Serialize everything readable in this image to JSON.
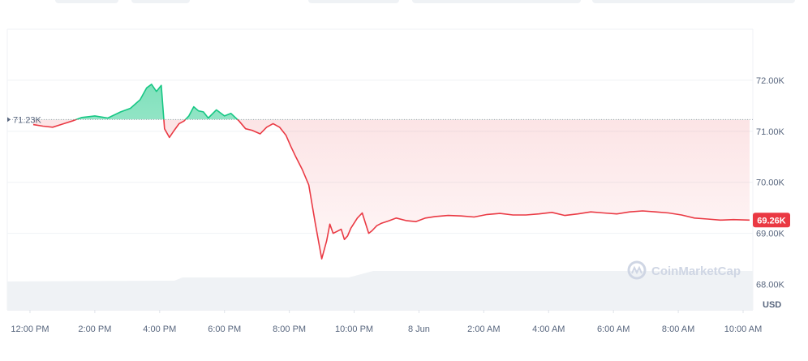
{
  "chart_data": {
    "type": "line",
    "unit_label": "USD",
    "watermark": "CoinMarketCap",
    "colors": {
      "up": "#16c784",
      "down": "#ea3943",
      "grid": "#eff2f5",
      "text": "#58667e",
      "volume": "#eff2f5"
    },
    "reference": {
      "value": 71230,
      "label": "71.23K"
    },
    "current": {
      "value": 69260,
      "label": "69.26K"
    },
    "ylim": [
      67500,
      73000
    ],
    "y_ticks": [
      {
        "value": 72000,
        "label": "72.00K"
      },
      {
        "value": 71000,
        "label": "71.00K"
      },
      {
        "value": 70000,
        "label": "70.00K"
      },
      {
        "value": 69000,
        "label": "69.00K"
      },
      {
        "value": 68000,
        "label": "68.00K"
      }
    ],
    "xlim": [
      11.3,
      34.3
    ],
    "x_ticks": [
      {
        "value": 12,
        "label": "12:00 PM"
      },
      {
        "value": 14,
        "label": "2:00 PM"
      },
      {
        "value": 16,
        "label": "4:00 PM"
      },
      {
        "value": 18,
        "label": "6:00 PM"
      },
      {
        "value": 20,
        "label": "8:00 PM"
      },
      {
        "value": 22,
        "label": "10:00 PM"
      },
      {
        "value": 24,
        "label": "8 Jun"
      },
      {
        "value": 26,
        "label": "2:00 AM"
      },
      {
        "value": 28,
        "label": "4:00 AM"
      },
      {
        "value": 30,
        "label": "6:00 AM"
      },
      {
        "value": 32,
        "label": "8:00 AM"
      },
      {
        "value": 34,
        "label": "10:00 AM"
      }
    ],
    "x": [
      12.1,
      12.4,
      12.7,
      13.0,
      13.3,
      13.6,
      14.0,
      14.4,
      14.8,
      15.1,
      15.4,
      15.6,
      15.75,
      15.9,
      16.05,
      16.15,
      16.3,
      16.45,
      16.6,
      16.75,
      16.9,
      17.05,
      17.2,
      17.35,
      17.5,
      17.75,
      18.0,
      18.2,
      18.45,
      18.65,
      18.85,
      19.1,
      19.3,
      19.5,
      19.7,
      19.9,
      20.05,
      20.2,
      20.4,
      20.6,
      20.8,
      21.0,
      21.15,
      21.25,
      21.35,
      21.45,
      21.6,
      21.7,
      21.8,
      21.9,
      22.1,
      22.25,
      22.35,
      22.45,
      22.55,
      22.7,
      22.85,
      23.05,
      23.3,
      23.6,
      23.9,
      24.2,
      24.5,
      24.9,
      25.3,
      25.7,
      26.1,
      26.5,
      26.9,
      27.3,
      27.7,
      28.1,
      28.5,
      28.9,
      29.3,
      29.7,
      30.1,
      30.5,
      30.9,
      31.3,
      31.7,
      32.1,
      32.5,
      32.9,
      33.3,
      33.7,
      34.2
    ],
    "y": [
      71130,
      71100,
      71080,
      71140,
      71200,
      71270,
      71300,
      71260,
      71380,
      71450,
      71620,
      71850,
      71920,
      71780,
      71900,
      71050,
      70880,
      71020,
      71150,
      71200,
      71300,
      71480,
      71400,
      71380,
      71260,
      71420,
      71300,
      71350,
      71200,
      71050,
      71020,
      70950,
      71080,
      71150,
      71080,
      70920,
      70700,
      70500,
      70250,
      69950,
      69200,
      68500,
      68850,
      69180,
      69000,
      69030,
      69080,
      68880,
      68950,
      69100,
      69300,
      69400,
      69200,
      69000,
      69050,
      69150,
      69200,
      69240,
      69300,
      69250,
      69230,
      69300,
      69330,
      69350,
      69340,
      69320,
      69370,
      69390,
      69360,
      69360,
      69380,
      69410,
      69350,
      69380,
      69420,
      69400,
      69380,
      69420,
      69440,
      69420,
      69400,
      69360,
      69300,
      69280,
      69260,
      69270,
      69260
    ],
    "volume_note": "volume area shown without printed values"
  }
}
